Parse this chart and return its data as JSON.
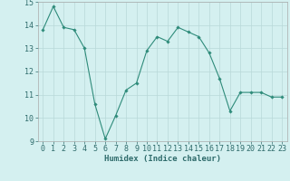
{
  "x": [
    0,
    1,
    2,
    3,
    4,
    5,
    6,
    7,
    8,
    9,
    10,
    11,
    12,
    13,
    14,
    15,
    16,
    17,
    18,
    19,
    20,
    21,
    22,
    23
  ],
  "y": [
    13.8,
    14.8,
    13.9,
    13.8,
    13.0,
    10.6,
    9.1,
    10.1,
    11.2,
    11.5,
    12.9,
    13.5,
    13.3,
    13.9,
    13.7,
    13.5,
    12.8,
    11.7,
    10.3,
    11.1,
    11.1,
    11.1,
    10.9,
    10.9
  ],
  "line_color": "#2e8b7a",
  "marker": "D",
  "marker_size": 1.8,
  "bg_color": "#d4f0f0",
  "grid_color": "#b8d8d8",
  "xlabel": "Humidex (Indice chaleur)",
  "ylim": [
    9,
    15
  ],
  "xlim_min": -0.5,
  "xlim_max": 23.5,
  "yticks": [
    9,
    10,
    11,
    12,
    13,
    14,
    15
  ],
  "xticks": [
    0,
    1,
    2,
    3,
    4,
    5,
    6,
    7,
    8,
    9,
    10,
    11,
    12,
    13,
    14,
    15,
    16,
    17,
    18,
    19,
    20,
    21,
    22,
    23
  ],
  "xlabel_fontsize": 6.5,
  "tick_fontsize": 6.0,
  "line_width": 0.8
}
